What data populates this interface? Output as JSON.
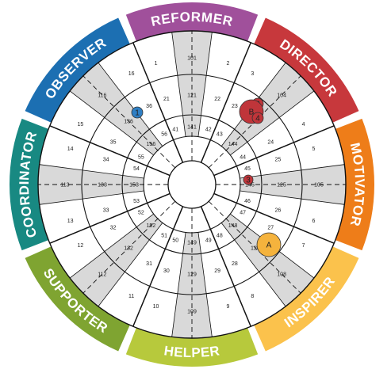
{
  "segments": [
    {
      "label": "REFORMER",
      "color": "#a0509b"
    },
    {
      "label": "DIRECTOR",
      "color": "#c7383c"
    },
    {
      "label": "MOTIVATOR",
      "color": "#ee7d19"
    },
    {
      "label": "INSPIRER",
      "color": "#fbc24c"
    },
    {
      "label": "HELPER",
      "color": "#b7c93c"
    },
    {
      "label": "SUPPORTER",
      "color": "#7fa431"
    },
    {
      "label": "COORDINATOR",
      "color": "#188982"
    },
    {
      "label": "OBSERVER",
      "color": "#1c6fb2"
    }
  ],
  "numbers": {
    "outer": [
      "1",
      "101",
      "2",
      "3",
      "104",
      "4",
      "5",
      "105",
      "6",
      "7",
      "108",
      "8",
      "9",
      "109",
      "10",
      "11",
      "112",
      "12",
      "13",
      "113",
      "14",
      "15",
      "116",
      "16"
    ],
    "ring3": [
      "21",
      "121",
      "22",
      "23",
      "124",
      "24",
      "25",
      "125",
      "26",
      "27",
      "128",
      "28",
      "29",
      "129",
      "30",
      "31",
      "132",
      "32",
      "33",
      "133",
      "34",
      "35",
      "136",
      "36"
    ],
    "ring2": [
      "41",
      "141",
      "42",
      "43",
      "144",
      "44",
      "45",
      "145",
      "46",
      "47",
      "148",
      "48",
      "49",
      "149",
      "50",
      "51",
      "152",
      "52",
      "53",
      "153",
      "54",
      "55",
      "156",
      "56"
    ]
  },
  "markers": [
    {
      "label": "1",
      "color": "#2f7fc4",
      "size": "small"
    },
    {
      "label": "2",
      "color": "#c0353a",
      "size": "small"
    },
    {
      "label": "B",
      "color": "#c0353a",
      "size": "large"
    },
    {
      "label": "4",
      "color": "#c0353a",
      "size": "small"
    },
    {
      "label": "3",
      "color": "#c0353a",
      "size": "small"
    },
    {
      "label": "A",
      "color": "#f5b33d",
      "size": "large"
    }
  ],
  "colors": {
    "shaded": "#d9d9d9",
    "lines": "#111111",
    "background": "#ffffff"
  }
}
